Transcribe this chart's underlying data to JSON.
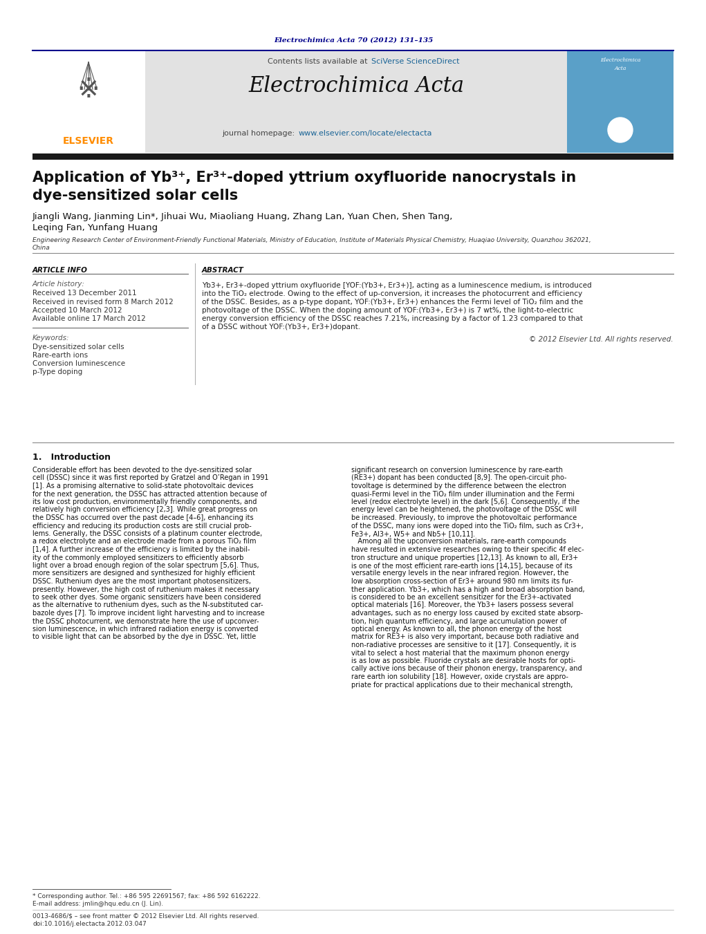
{
  "bg_color": "#ffffff",
  "journal_citation": "Electrochimica Acta 70 (2012) 131–135",
  "journal_citation_color": "#00008B",
  "journal_name": "Electrochimica Acta",
  "contents_text": "Contents lists available at ",
  "sciverse_text": "SciVerse ScienceDirect",
  "homepage_label": "journal homepage: ",
  "homepage_url": "www.elsevier.com/locate/electacta",
  "elsevier_color": "#FF8C00",
  "link_color": "#1a6496",
  "dark_blue": "#00008B",
  "header_bg": "#e2e2e2",
  "thick_bar_color": "#1a1a1a",
  "article_title_line1": "Application of Yb³⁺, Er³⁺-doped yttrium oxyfluoride nanocrystals in",
  "article_title_line2": "dye-sensitized solar cells",
  "authors_line1": "Jiangli Wang, Jianming Lin*, Jihuai Wu, Miaoliang Huang, Zhang Lan, Yuan Chen, Shen Tang,",
  "authors_line2": "Leqing Fan, Yunfang Huang",
  "affil1": "Engineering Research Center of Environment-Friendly Functional Materials, Ministry of Education, Institute of Materials Physical Chemistry, Huaqiao University, Quanzhou 362021,",
  "affil2": "China",
  "art_info_head": "ARTICLE INFO",
  "abstract_head": "ABSTRACT",
  "art_history_label": "Article history:",
  "received1": "Received 13 December 2011",
  "received2": "Received in revised form 8 March 2012",
  "accepted": "Accepted 10 March 2012",
  "online": "Available online 17 March 2012",
  "kw_label": "Keywords:",
  "keywords": [
    "Dye-sensitized solar cells",
    "Rare-earth ions",
    "Conversion luminescence",
    "p-Type doping"
  ],
  "abstract_lines": [
    "Yb3+, Er3+-doped yttrium oxyfluoride [YOF:(Yb3+, Er3+)], acting as a luminescence medium, is introduced",
    "into the TiO₂ electrode. Owing to the effect of up-conversion, it increases the photocurrent and efficiency",
    "of the DSSC. Besides, as a p-type dopant, YOF:(Yb3+, Er3+) enhances the Fermi level of TiO₂ film and the",
    "photovoltage of the DSSC. When the doping amount of YOF:(Yb3+, Er3+) is 7 wt%, the light-to-electric",
    "energy conversion efficiency of the DSSC reaches 7.21%, increasing by a factor of 1.23 compared to that",
    "of a DSSC without YOF:(Yb3+, Er3+)dopant."
  ],
  "copyright": "© 2012 Elsevier Ltd. All rights reserved.",
  "intro_head": "1.   Introduction",
  "col1": [
    "Considerable effort has been devoted to the dye-sensitized solar",
    "cell (DSSC) since it was first reported by Gratzel and O’Regan in 1991",
    "[1]. As a promising alternative to solid-state photovoltaic devices",
    "for the next generation, the DSSC has attracted attention because of",
    "its low cost production, environmentally friendly components, and",
    "relatively high conversion efficiency [2,3]. While great progress on",
    "the DSSC has occurred over the past decade [4–6], enhancing its",
    "efficiency and reducing its production costs are still crucial prob-",
    "lems. Generally, the DSSC consists of a platinum counter electrode,",
    "a redox electrolyte and an electrode made from a porous TiO₂ film",
    "[1,4]. A further increase of the efficiency is limited by the inabil-",
    "ity of the commonly employed sensitizers to efficiently absorb",
    "light over a broad enough region of the solar spectrum [5,6]. Thus,",
    "more sensitizers are designed and synthesized for highly efficient",
    "DSSC. Ruthenium dyes are the most important photosensitizers,",
    "presently. However, the high cost of ruthenium makes it necessary",
    "to seek other dyes. Some organic sensitizers have been considered",
    "as the alternative to ruthenium dyes, such as the N-substituted car-",
    "bazole dyes [7]. To improve incident light harvesting and to increase",
    "the DSSC photocurrent, we demonstrate here the use of upconver-",
    "sion luminescence, in which infrared radiation energy is converted",
    "to visible light that can be absorbed by the dye in DSSC. Yet, little"
  ],
  "col2": [
    "significant research on conversion luminescence by rare-earth",
    "(RE3+) dopant has been conducted [8,9]. The open-circuit pho-",
    "tovoltage is determined by the difference between the electron",
    "quasi-Fermi level in the TiO₂ film under illumination and the Fermi",
    "level (redox electrolyte level) in the dark [5,6]. Consequently, if the",
    "energy level can be heightened, the photovoltage of the DSSC will",
    "be increased. Previously, to improve the photovoltaic performance",
    "of the DSSC, many ions were doped into the TiO₂ film, such as Cr3+,",
    "Fe3+, Al3+, W5+ and Nb5+ [10,11].",
    "   Among all the upconversion materials, rare-earth compounds",
    "have resulted in extensive researches owing to their specific 4f elec-",
    "tron structure and unique properties [12,13]. As known to all, Er3+",
    "is one of the most efficient rare-earth ions [14,15], because of its",
    "versatile energy levels in the near infrared region. However, the",
    "low absorption cross-section of Er3+ around 980 nm limits its fur-",
    "ther application. Yb3+, which has a high and broad absorption band,",
    "is considered to be an excellent sensitizer for the Er3+-activated",
    "optical materials [16]. Moreover, the Yb3+ lasers possess several",
    "advantages, such as no energy loss caused by excited state absorp-",
    "tion, high quantum efficiency, and large accumulation power of",
    "optical energy. As known to all, the phonon energy of the host",
    "matrix for RE3+ is also very important, because both radiative and",
    "non-radiative processes are sensitive to it [17]. Consequently, it is",
    "vital to select a host material that the maximum phonon energy",
    "is as low as possible. Fluoride crystals are desirable hosts for opti-",
    "cally active ions because of their phonon energy, transparency, and",
    "rare earth ion solubility [18]. However, oxide crystals are appro-",
    "priate for practical applications due to their mechanical strength,"
  ],
  "fn1": "* Corresponding author. Tel.: +86 595 22691567; fax: +86 592 6162222.",
  "fn2": "E-mail address: jmlin@hqu.edu.cn (J. Lin).",
  "fn3": "0013-4686/$ – see front matter © 2012 Elsevier Ltd. All rights reserved.",
  "fn4": "doi:10.1016/j.electacta.2012.03.047"
}
